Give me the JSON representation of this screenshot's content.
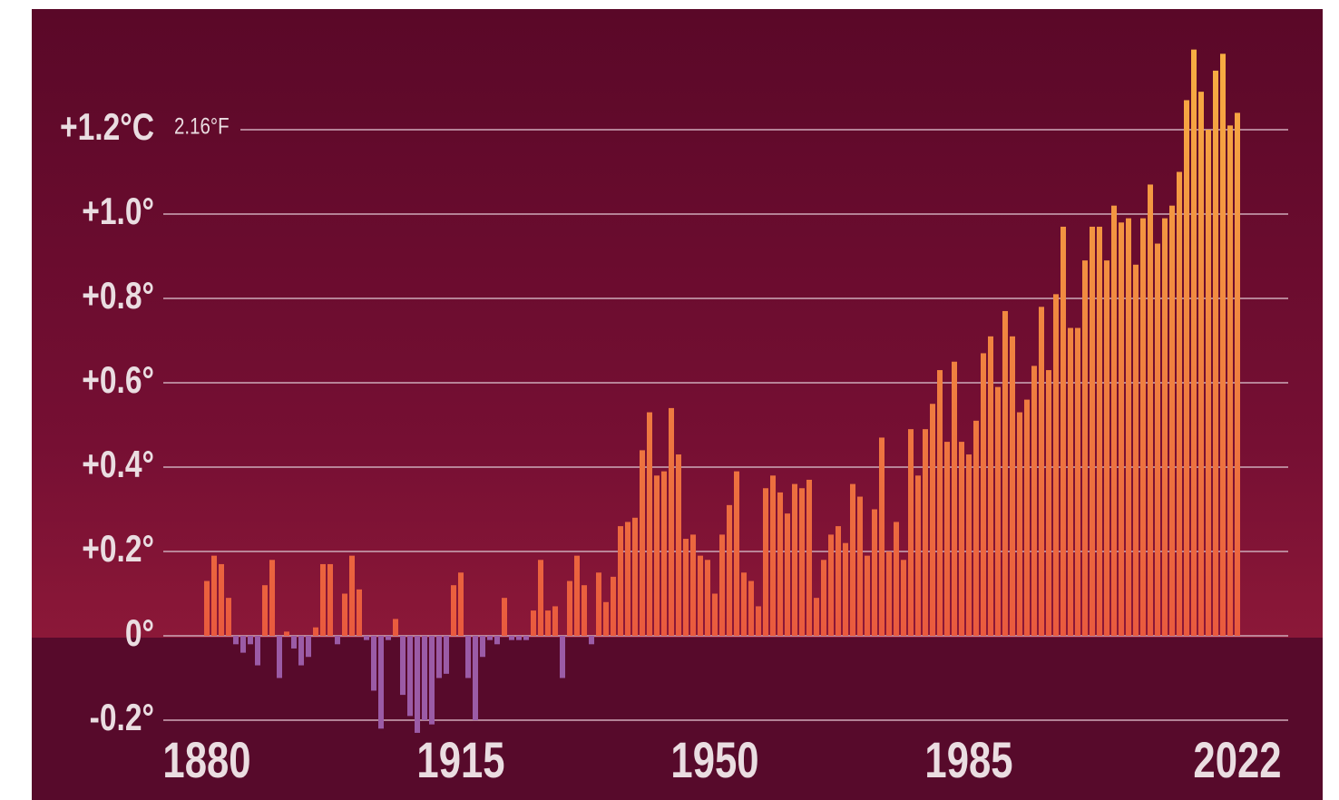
{
  "chart_data": {
    "type": "bar",
    "annotation": "2.16°F",
    "x": [
      1880,
      1881,
      1882,
      1883,
      1884,
      1885,
      1886,
      1887,
      1888,
      1889,
      1890,
      1891,
      1892,
      1893,
      1894,
      1895,
      1896,
      1897,
      1898,
      1899,
      1900,
      1901,
      1902,
      1903,
      1904,
      1905,
      1906,
      1907,
      1908,
      1909,
      1910,
      1911,
      1912,
      1913,
      1914,
      1915,
      1916,
      1917,
      1918,
      1919,
      1920,
      1921,
      1922,
      1923,
      1924,
      1925,
      1926,
      1927,
      1928,
      1929,
      1930,
      1931,
      1932,
      1933,
      1934,
      1935,
      1936,
      1937,
      1938,
      1939,
      1940,
      1941,
      1942,
      1943,
      1944,
      1945,
      1946,
      1947,
      1948,
      1949,
      1950,
      1951,
      1952,
      1953,
      1954,
      1955,
      1956,
      1957,
      1958,
      1959,
      1960,
      1961,
      1962,
      1963,
      1964,
      1965,
      1966,
      1967,
      1968,
      1969,
      1970,
      1971,
      1972,
      1973,
      1974,
      1975,
      1976,
      1977,
      1978,
      1979,
      1980,
      1981,
      1982,
      1983,
      1984,
      1985,
      1986,
      1987,
      1988,
      1989,
      1990,
      1991,
      1992,
      1993,
      1994,
      1995,
      1996,
      1997,
      1998,
      1999,
      2000,
      2001,
      2002,
      2003,
      2004,
      2005,
      2006,
      2007,
      2008,
      2009,
      2010,
      2011,
      2012,
      2013,
      2014,
      2015,
      2016,
      2017,
      2018,
      2019,
      2020,
      2021,
      2022
    ],
    "values": [
      0.13,
      0.19,
      0.17,
      0.09,
      -0.02,
      -0.04,
      -0.02,
      -0.07,
      0.12,
      0.18,
      -0.1,
      0.01,
      -0.03,
      -0.07,
      -0.05,
      0.02,
      0.17,
      0.17,
      -0.02,
      0.1,
      0.19,
      0.11,
      -0.01,
      -0.13,
      -0.22,
      -0.01,
      0.04,
      -0.14,
      -0.19,
      -0.23,
      -0.2,
      -0.21,
      -0.1,
      -0.09,
      0.12,
      0.15,
      -0.1,
      -0.2,
      -0.05,
      -0.01,
      -0.02,
      0.09,
      -0.01,
      -0.01,
      -0.01,
      0.06,
      0.18,
      0.06,
      0.07,
      -0.1,
      0.13,
      0.19,
      0.12,
      -0.02,
      0.15,
      0.08,
      0.14,
      0.26,
      0.27,
      0.28,
      0.44,
      0.53,
      0.38,
      0.39,
      0.54,
      0.43,
      0.23,
      0.24,
      0.19,
      0.18,
      0.1,
      0.24,
      0.31,
      0.39,
      0.15,
      0.13,
      0.07,
      0.35,
      0.38,
      0.34,
      0.29,
      0.36,
      0.35,
      0.37,
      0.09,
      0.18,
      0.24,
      0.26,
      0.22,
      0.36,
      0.33,
      0.19,
      0.3,
      0.47,
      0.2,
      0.27,
      0.18,
      0.49,
      0.38,
      0.49,
      0.55,
      0.63,
      0.46,
      0.65,
      0.46,
      0.43,
      0.51,
      0.67,
      0.71,
      0.59,
      0.77,
      0.71,
      0.53,
      0.56,
      0.64,
      0.78,
      0.63,
      0.81,
      0.97,
      0.73,
      0.73,
      0.89,
      0.97,
      0.97,
      0.89,
      1.02,
      0.98,
      0.99,
      0.88,
      0.99,
      1.07,
      0.93,
      0.99,
      1.02,
      1.1,
      1.27,
      1.39,
      1.29,
      1.2,
      1.34,
      1.38,
      1.21,
      1.24
    ],
    "color": "#f2883e",
    "negative_color": "#9b5ba6",
    "xlim": [
      1874,
      2029
    ],
    "xticks": [
      1880,
      1915,
      1950,
      1985,
      2022
    ],
    "ylim": [
      -0.24,
      1.49
    ],
    "yticks": [
      {
        "value": -0.2,
        "label": "-0.2°"
      },
      {
        "value": 0,
        "label": "0°"
      },
      {
        "value": 0.2,
        "label": "+0.2°"
      },
      {
        "value": 0.4,
        "label": "+0.4°"
      },
      {
        "value": 0.6,
        "label": "+0.6°"
      },
      {
        "value": 0.8,
        "label": "+0.8°"
      },
      {
        "value": 1.0,
        "label": "+1.0°"
      },
      {
        "value": 1.2,
        "label": "+1.2°C"
      }
    ],
    "grid": true
  }
}
